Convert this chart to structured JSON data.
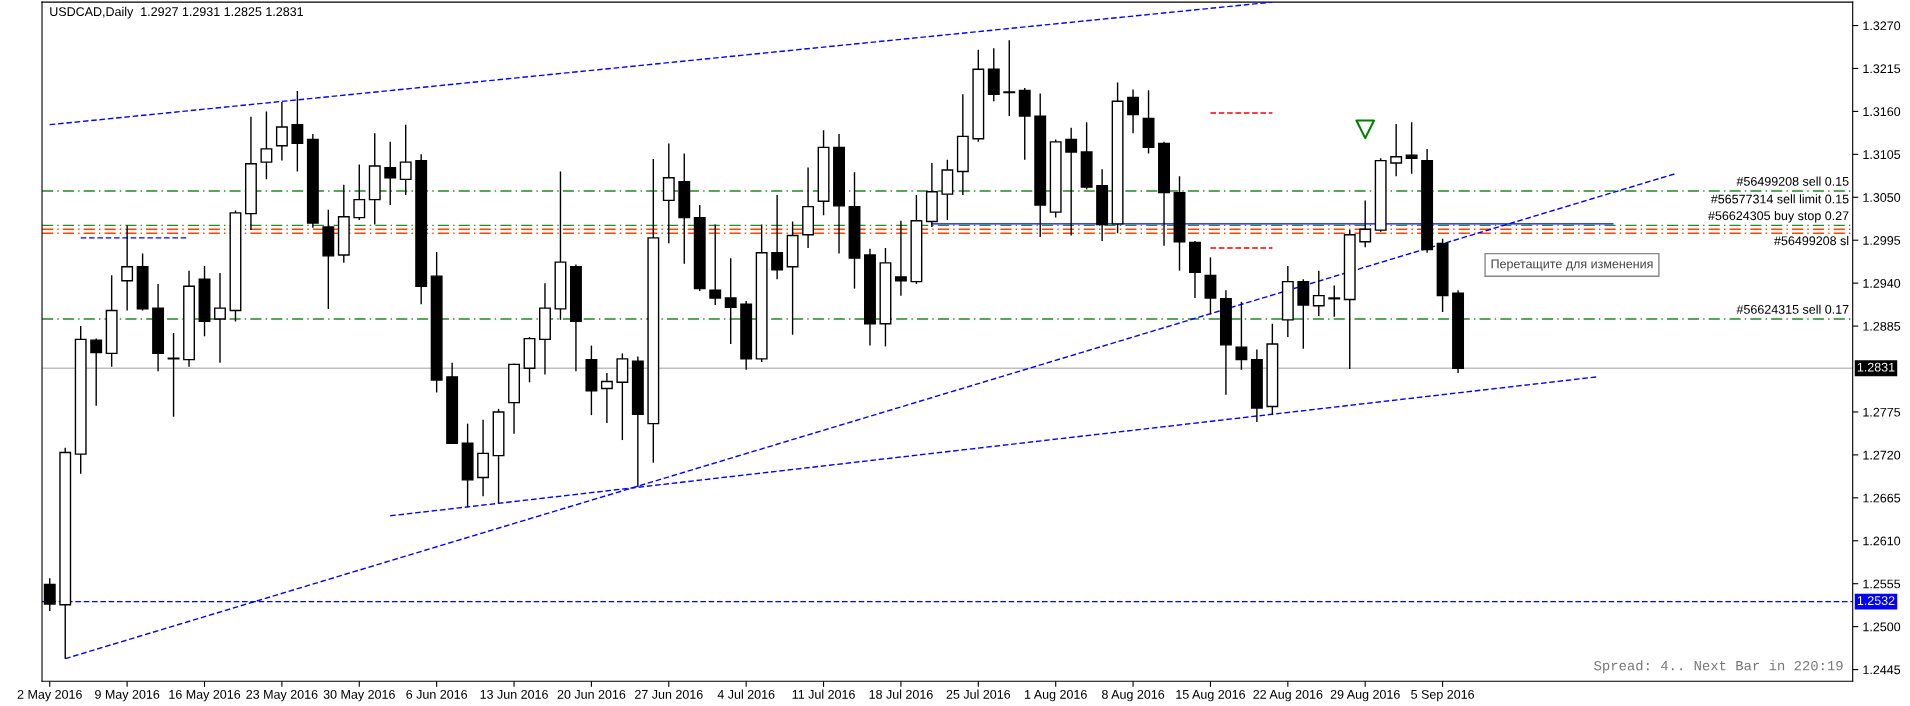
{
  "chart_data": {
    "type": "candlestick",
    "title": "USDCAD,Daily  1.2927 1.2931 1.2825 1.2831",
    "categories": [
      "2 May 2016",
      null,
      null,
      null,
      null,
      "9 May 2016",
      null,
      null,
      null,
      null,
      "16 May 2016",
      null,
      null,
      null,
      null,
      "23 May 2016",
      null,
      null,
      null,
      null,
      "30 May 2016",
      null,
      null,
      null,
      null,
      "6 Jun 2016",
      null,
      null,
      null,
      null,
      "13 Jun 2016",
      null,
      null,
      null,
      null,
      "20 Jun 2016",
      null,
      null,
      null,
      null,
      "27 Jun 2016",
      null,
      null,
      null,
      null,
      "4 Jul 2016",
      null,
      null,
      null,
      null,
      "11 Jul 2016",
      null,
      null,
      null,
      null,
      "18 Jul 2016",
      null,
      null,
      null,
      null,
      "25 Jul 2016",
      null,
      null,
      null,
      null,
      "1 Aug 2016",
      null,
      null,
      null,
      null,
      "8 Aug 2016",
      null,
      null,
      null,
      null,
      "15 Aug 2016",
      null,
      null,
      null,
      null,
      "22 Aug 2016",
      null,
      null,
      null,
      null,
      "29 Aug 2016",
      null,
      null,
      null,
      null,
      "5 Sep 2016",
      null,
      null,
      null,
      null,
      null,
      null,
      null,
      null,
      null,
      null,
      null,
      null,
      null,
      null,
      null,
      null,
      null,
      null,
      null,
      null,
      null,
      null,
      null,
      null,
      null,
      null
    ],
    "ohlc": [
      [
        1.2554,
        1.2562,
        1.252,
        1.2529
      ],
      [
        1.2528,
        1.2729,
        1.2459,
        1.2723
      ],
      [
        1.2721,
        1.2885,
        1.2696,
        1.2868
      ],
      [
        1.2867,
        1.2869,
        1.2783,
        1.2851
      ],
      [
        1.285,
        1.295,
        1.2833,
        1.2905
      ],
      [
        1.2943,
        1.3014,
        1.2905,
        1.2961
      ],
      [
        1.2961,
        1.2978,
        1.2905,
        1.2907
      ],
      [
        1.2908,
        1.2939,
        1.2827,
        1.285
      ],
      [
        1.2843,
        1.2876,
        1.2769,
        1.2844
      ],
      [
        1.2842,
        1.2956,
        1.2833,
        1.2936
      ],
      [
        1.2945,
        1.2962,
        1.2872,
        1.2891
      ],
      [
        1.2894,
        1.2953,
        1.2838,
        1.2908
      ],
      [
        1.2905,
        1.3033,
        1.2891,
        1.303
      ],
      [
        1.3029,
        1.3153,
        1.3008,
        1.3093
      ],
      [
        1.3095,
        1.316,
        1.3073,
        1.3112
      ],
      [
        1.3116,
        1.3172,
        1.3097,
        1.314
      ],
      [
        1.3143,
        1.3186,
        1.3083,
        1.3119
      ],
      [
        1.3124,
        1.3131,
        1.3011,
        1.3017
      ],
      [
        1.3012,
        1.3034,
        1.2907,
        1.2975
      ],
      [
        1.2976,
        1.3066,
        1.2966,
        1.3025
      ],
      [
        1.3024,
        1.3092,
        1.3021,
        1.3047
      ],
      [
        1.3047,
        1.3132,
        1.3015,
        1.309
      ],
      [
        1.3088,
        1.3121,
        1.304,
        1.3075
      ],
      [
        1.3073,
        1.3143,
        1.3053,
        1.3095
      ],
      [
        1.3097,
        1.3105,
        1.2913,
        1.2936
      ],
      [
        1.2949,
        1.298,
        1.28,
        1.2816
      ],
      [
        1.282,
        1.2838,
        1.2734,
        1.2735
      ],
      [
        1.2735,
        1.276,
        1.2653,
        1.2688
      ],
      [
        1.2691,
        1.2765,
        1.2667,
        1.2722
      ],
      [
        1.2719,
        1.2779,
        1.2658,
        1.2775
      ],
      [
        1.2787,
        1.2837,
        1.2747,
        1.2836
      ],
      [
        1.2831,
        1.2871,
        1.2813,
        1.2869
      ],
      [
        1.2868,
        1.294,
        1.2823,
        1.2908
      ],
      [
        1.2907,
        1.3083,
        1.2893,
        1.2967
      ],
      [
        1.2961,
        1.2964,
        1.2827,
        1.2891
      ],
      [
        1.2842,
        1.286,
        1.2771,
        1.2802
      ],
      [
        1.2805,
        1.2825,
        1.2761,
        1.2814
      ],
      [
        1.2813,
        1.285,
        1.2739,
        1.2843
      ],
      [
        1.284,
        1.2846,
        1.2679,
        1.2772
      ],
      [
        1.276,
        1.3099,
        1.271,
        1.2998
      ],
      [
        1.3046,
        1.3119,
        1.2991,
        1.3075
      ],
      [
        1.307,
        1.3106,
        1.2965,
        1.3024
      ],
      [
        1.3024,
        1.304,
        1.293,
        1.2933
      ],
      [
        1.2931,
        1.3015,
        1.2912,
        1.2921
      ],
      [
        1.2921,
        1.2972,
        1.2862,
        1.2909
      ],
      [
        1.2913,
        1.2917,
        1.2829,
        1.2843
      ],
      [
        1.2843,
        1.3015,
        1.2839,
        1.2979
      ],
      [
        1.2979,
        1.3053,
        1.2945,
        1.2957
      ],
      [
        1.2961,
        1.3019,
        1.2874,
        1.3001
      ],
      [
        1.3002,
        1.3088,
        1.2985,
        1.3038
      ],
      [
        1.3045,
        1.3136,
        1.3027,
        1.3114
      ],
      [
        1.3114,
        1.3131,
        1.2978,
        1.3039
      ],
      [
        1.3038,
        1.3082,
        1.2933,
        1.2972
      ],
      [
        1.2976,
        1.2984,
        1.286,
        1.2888
      ],
      [
        1.2888,
        1.2985,
        1.2859,
        1.2966
      ],
      [
        1.2948,
        1.302,
        1.2924,
        1.2943
      ],
      [
        1.2942,
        1.3053,
        1.2939,
        1.302
      ],
      [
        1.3019,
        1.3094,
        1.3012,
        1.3057
      ],
      [
        1.3054,
        1.3098,
        1.3021,
        1.3085
      ],
      [
        1.3083,
        1.3182,
        1.3053,
        1.3128
      ],
      [
        1.3125,
        1.3239,
        1.3121,
        1.3214
      ],
      [
        1.3214,
        1.3241,
        1.3173,
        1.3182
      ],
      [
        1.3185,
        1.3251,
        1.3154,
        1.3184
      ],
      [
        1.3187,
        1.319,
        1.3098,
        1.3154
      ],
      [
        1.3154,
        1.3183,
        1.2999,
        1.304
      ],
      [
        1.3031,
        1.3124,
        1.3024,
        1.3121
      ],
      [
        1.3124,
        1.3139,
        1.3001,
        1.3108
      ],
      [
        1.3108,
        1.3146,
        1.306,
        1.3063
      ],
      [
        1.3065,
        1.3086,
        1.2994,
        1.3015
      ],
      [
        1.3016,
        1.3197,
        1.3004,
        1.3173
      ],
      [
        1.3178,
        1.3188,
        1.3132,
        1.3156
      ],
      [
        1.3151,
        1.3187,
        1.3106,
        1.3114
      ],
      [
        1.3119,
        1.3121,
        1.2988,
        1.3056
      ],
      [
        1.3056,
        1.3077,
        1.2956,
        1.2993
      ],
      [
        1.2992,
        1.2994,
        1.2921,
        1.2954
      ],
      [
        1.295,
        1.2973,
        1.29,
        1.2921
      ],
      [
        1.292,
        1.2931,
        1.2797,
        1.2861
      ],
      [
        1.2858,
        1.2916,
        1.2829,
        1.2842
      ],
      [
        1.2842,
        1.2855,
        1.2762,
        1.278
      ],
      [
        1.2782,
        1.2888,
        1.2771,
        1.2862
      ],
      [
        1.2893,
        1.2962,
        1.2871,
        1.2942
      ],
      [
        1.2942,
        1.2945,
        1.2856,
        1.2912
      ],
      [
        1.2911,
        1.2956,
        1.2898,
        1.2924
      ],
      [
        1.2921,
        1.2937,
        1.2897,
        1.292
      ],
      [
        1.2919,
        1.3008,
        1.283,
        1.3002
      ],
      [
        1.2993,
        1.3046,
        1.2986,
        1.3009
      ],
      [
        1.3008,
        1.31,
        1.3006,
        1.3097
      ],
      [
        1.3094,
        1.3144,
        1.3077,
        1.3102
      ],
      [
        1.3104,
        1.3146,
        1.308,
        1.31
      ],
      [
        1.3097,
        1.3112,
        1.2979,
        1.2983
      ],
      [
        1.2991,
        1.2997,
        1.2903,
        1.2924
      ],
      [
        1.2927,
        1.2931,
        1.2825,
        1.2831
      ],
      null,
      null,
      null,
      null,
      null,
      null,
      null,
      null,
      null,
      null,
      null,
      null,
      null,
      null,
      null,
      null,
      null,
      null,
      null,
      null,
      null,
      null,
      null,
      null,
      null
    ],
    "series": [
      {
        "type": "line",
        "color": "#0000ff",
        "line_style": "dashed",
        "values": [
          1.3143,
          null,
          null,
          null,
          null,
          null,
          null,
          null,
          null,
          null,
          null,
          null,
          null,
          null,
          null,
          null,
          null,
          null,
          null,
          null,
          null,
          null,
          null,
          null,
          null,
          null,
          null,
          null,
          null,
          null,
          null,
          null,
          null,
          null,
          null,
          null,
          null,
          null,
          null,
          null,
          null,
          null,
          null,
          null,
          null,
          null,
          null,
          null,
          null,
          null,
          null,
          null,
          null,
          null,
          null,
          null,
          null,
          null,
          null,
          null,
          null,
          null,
          null,
          null,
          null,
          null,
          null,
          null,
          null,
          null,
          null,
          null,
          null,
          null,
          null,
          null,
          null,
          null,
          null,
          1.33,
          null,
          null,
          null,
          null,
          null,
          null,
          null,
          null,
          null,
          null,
          null,
          null,
          null,
          null,
          null,
          null,
          null,
          null,
          null,
          null,
          null,
          null,
          null,
          null,
          null,
          null,
          null,
          null,
          null,
          null,
          null,
          null,
          null,
          null,
          null,
          null,
          null
        ]
      },
      {
        "type": "line",
        "color": "#0000ff",
        "line_style": "dashed",
        "values": [
          null,
          1.2459,
          null,
          null,
          null,
          null,
          null,
          null,
          null,
          null,
          null,
          null,
          null,
          null,
          null,
          null,
          null,
          null,
          null,
          null,
          null,
          null,
          null,
          null,
          null,
          null,
          null,
          null,
          null,
          null,
          null,
          null,
          null,
          null,
          null,
          null,
          null,
          null,
          null,
          null,
          null,
          null,
          null,
          null,
          null,
          null,
          null,
          null,
          null,
          null,
          null,
          null,
          null,
          null,
          null,
          null,
          null,
          null,
          null,
          null,
          null,
          null,
          null,
          null,
          null,
          null,
          null,
          null,
          null,
          null,
          null,
          null,
          null,
          null,
          null,
          null,
          null,
          null,
          null,
          null,
          null,
          null,
          null,
          null,
          null,
          null,
          null,
          null,
          null,
          null,
          null,
          null,
          null,
          null,
          null,
          null,
          null,
          null,
          null,
          null,
          null,
          null,
          null,
          null,
          null,
          1.308,
          null,
          null,
          null,
          null,
          null,
          null,
          null,
          null,
          null,
          null,
          null
        ]
      },
      {
        "type": "line",
        "color": "#0000ff",
        "line_style": "dashed",
        "values": [
          null,
          null,
          null,
          null,
          null,
          null,
          null,
          null,
          null,
          null,
          null,
          null,
          null,
          null,
          null,
          null,
          null,
          null,
          null,
          null,
          null,
          null,
          1.2642,
          null,
          null,
          null,
          null,
          null,
          null,
          null,
          null,
          null,
          null,
          null,
          null,
          null,
          null,
          null,
          null,
          null,
          null,
          null,
          null,
          null,
          null,
          null,
          null,
          null,
          null,
          null,
          null,
          null,
          null,
          null,
          null,
          null,
          null,
          null,
          null,
          null,
          null,
          null,
          null,
          null,
          null,
          null,
          null,
          null,
          null,
          null,
          null,
          null,
          null,
          null,
          null,
          null,
          null,
          null,
          null,
          null,
          null,
          null,
          null,
          null,
          null,
          null,
          null,
          null,
          null,
          null,
          null,
          null,
          null,
          null,
          null,
          null,
          null,
          null,
          null,
          null,
          1.282,
          null,
          null,
          null,
          null,
          null,
          null,
          null,
          null,
          null,
          null,
          null,
          null,
          null,
          null,
          null,
          null
        ]
      },
      {
        "type": "line",
        "color": "#0000ff",
        "line_style": "dashed",
        "values": [
          null,
          null,
          1.2998,
          null,
          null,
          null,
          null,
          null,
          null,
          1.2998,
          null,
          null,
          null,
          null,
          null,
          null,
          null,
          null,
          null,
          null,
          null,
          null,
          null,
          null,
          null,
          null,
          null,
          null,
          null,
          null,
          null,
          null,
          null,
          null,
          null,
          null,
          null,
          null,
          null,
          null,
          null,
          null,
          null,
          null,
          null,
          null,
          null,
          null,
          null,
          null,
          null,
          null,
          null,
          null,
          null,
          null,
          null,
          null,
          null,
          null,
          null,
          null,
          null,
          null,
          null,
          null,
          null,
          null,
          null,
          null,
          null,
          null,
          null,
          null,
          null,
          null,
          null,
          null,
          null,
          null,
          null,
          null,
          null,
          null,
          null,
          null,
          null,
          null,
          null,
          null,
          null,
          null,
          null,
          null,
          null,
          null,
          null,
          null,
          null,
          null,
          null,
          null,
          null,
          null,
          null,
          null,
          null,
          null,
          null,
          null,
          null,
          null,
          null,
          null,
          null,
          null,
          null
        ]
      },
      {
        "type": "line",
        "color": "#0000ff",
        "line_style": "solid",
        "values": [
          null,
          null,
          null,
          null,
          null,
          null,
          null,
          null,
          null,
          null,
          null,
          null,
          null,
          null,
          null,
          null,
          null,
          null,
          null,
          null,
          null,
          null,
          null,
          null,
          null,
          null,
          null,
          null,
          null,
          null,
          null,
          null,
          null,
          null,
          null,
          null,
          null,
          null,
          null,
          null,
          null,
          null,
          null,
          null,
          null,
          null,
          null,
          null,
          null,
          null,
          null,
          null,
          null,
          null,
          null,
          null,
          null,
          1.3016,
          null,
          null,
          null,
          null,
          null,
          null,
          null,
          null,
          null,
          null,
          null,
          null,
          null,
          null,
          null,
          null,
          null,
          null,
          null,
          null,
          null,
          null,
          null,
          null,
          null,
          null,
          null,
          null,
          null,
          null,
          null,
          null,
          null,
          null,
          null,
          null,
          null,
          null,
          null,
          null,
          null,
          null,
          null,
          1.3016,
          null,
          null,
          null,
          null,
          null,
          null,
          null,
          null,
          null,
          null,
          null,
          null,
          null,
          null,
          null
        ]
      },
      {
        "type": "line",
        "color": "#ff0000",
        "line_style": "dashed",
        "values": [
          null,
          null,
          null,
          null,
          null,
          null,
          null,
          null,
          null,
          null,
          null,
          null,
          null,
          null,
          null,
          null,
          null,
          null,
          null,
          null,
          null,
          null,
          null,
          null,
          null,
          null,
          null,
          null,
          null,
          null,
          null,
          null,
          null,
          null,
          null,
          null,
          null,
          null,
          null,
          null,
          null,
          null,
          null,
          null,
          null,
          null,
          null,
          null,
          null,
          null,
          null,
          null,
          null,
          null,
          null,
          null,
          null,
          null,
          null,
          null,
          null,
          null,
          null,
          null,
          null,
          null,
          null,
          null,
          null,
          null,
          null,
          null,
          null,
          null,
          null,
          1.3158,
          null,
          null,
          null,
          1.3158,
          null,
          null,
          null,
          null,
          null,
          null,
          null,
          null,
          null,
          null,
          null,
          null,
          null,
          null,
          null,
          null,
          null,
          null,
          null,
          null,
          null,
          null,
          null,
          null,
          null,
          null,
          null,
          null,
          null,
          null,
          null,
          null,
          null,
          null,
          null,
          null,
          null
        ]
      },
      {
        "type": "line",
        "color": "#ff0000",
        "line_style": "dashed",
        "values": [
          null,
          null,
          null,
          null,
          null,
          null,
          null,
          null,
          null,
          null,
          null,
          null,
          null,
          null,
          null,
          null,
          null,
          null,
          null,
          null,
          null,
          null,
          null,
          null,
          null,
          null,
          null,
          null,
          null,
          null,
          null,
          null,
          null,
          null,
          null,
          null,
          null,
          null,
          null,
          null,
          null,
          null,
          null,
          null,
          null,
          null,
          null,
          null,
          null,
          null,
          null,
          null,
          null,
          null,
          null,
          null,
          null,
          null,
          null,
          null,
          null,
          null,
          null,
          null,
          null,
          null,
          null,
          null,
          null,
          null,
          null,
          null,
          null,
          null,
          null,
          1.2985,
          null,
          null,
          null,
          1.2985,
          null,
          null,
          null,
          null,
          null,
          null,
          null,
          null,
          null,
          null,
          null,
          null,
          null,
          null,
          null,
          null,
          null,
          null,
          null,
          null,
          null,
          null,
          null,
          null,
          null,
          null,
          null,
          null,
          null,
          null,
          null,
          null,
          null,
          null,
          null,
          null,
          null
        ]
      },
      {
        "type": "scatter",
        "color": "#008000",
        "marker": "triangle",
        "values": [
          null,
          null,
          null,
          null,
          null,
          null,
          null,
          null,
          null,
          null,
          null,
          null,
          null,
          null,
          null,
          null,
          null,
          null,
          null,
          null,
          null,
          null,
          null,
          null,
          null,
          null,
          null,
          null,
          null,
          null,
          null,
          null,
          null,
          null,
          null,
          null,
          null,
          null,
          null,
          null,
          null,
          null,
          null,
          null,
          null,
          null,
          null,
          null,
          null,
          null,
          null,
          null,
          null,
          null,
          null,
          null,
          null,
          null,
          null,
          null,
          null,
          null,
          null,
          null,
          null,
          null,
          null,
          null,
          null,
          null,
          null,
          null,
          null,
          null,
          null,
          null,
          null,
          null,
          null,
          null,
          null,
          null,
          null,
          null,
          null,
          1.3137,
          null,
          null,
          null,
          null,
          null,
          null,
          null,
          null,
          null,
          null,
          null,
          null,
          null,
          null,
          null,
          null,
          null,
          null,
          null,
          null,
          null,
          null,
          null,
          null,
          null,
          null,
          null,
          null,
          null,
          null,
          null
        ]
      }
    ],
    "ref_lines": [
      {
        "axis": "y",
        "value": 1.3058,
        "label": "#56499208 sell 0.15",
        "color": "#228b22",
        "line_style": "dashdot"
      },
      {
        "axis": "y",
        "value": 1.3014,
        "label": "#56577314 sell limit 0.15",
        "color": "#228b22",
        "line_style": "dashdot"
      },
      {
        "axis": "y",
        "value": 1.3009,
        "label": "#56624305 buy stop 0.27",
        "color": "#ff4500",
        "line_style": "dashdot"
      },
      {
        "axis": "y",
        "value": 1.3004,
        "label": "#56499208 sl",
        "color": "#ff4500",
        "line_style": "dashdot"
      },
      {
        "axis": "y",
        "value": 1.2894,
        "label": "#56624315 sell 0.17",
        "color": "#228b22",
        "line_style": "dashdot"
      },
      {
        "axis": "y",
        "value": 1.2831,
        "label": "1.2831",
        "color": "#c0c0c0",
        "line_style": "solid"
      },
      {
        "axis": "y",
        "value": 1.2532,
        "label": "1.2532",
        "color": "#0000ff",
        "line_style": "dashed"
      }
    ],
    "annotations": [
      "Перетащите для изменения",
      "Spread: 4.. Next Bar in 220:19"
    ],
    "ylim": [
      1.243,
      1.33
    ],
    "yticks": [
      {
        "value": 1.2445,
        "label": "1.2445"
      },
      {
        "value": 1.25,
        "label": "1.2500"
      },
      {
        "value": 1.2555,
        "label": "1.2555"
      },
      {
        "value": 1.261,
        "label": "1.2610"
      },
      {
        "value": 1.2665,
        "label": "1.2665"
      },
      {
        "value": 1.272,
        "label": "1.2720"
      },
      {
        "value": 1.2775,
        "label": "1.2775"
      },
      {
        "value": 1.2885,
        "label": "1.2885"
      },
      {
        "value": 1.294,
        "label": "1.2940"
      },
      {
        "value": 1.2995,
        "label": "1.2995"
      },
      {
        "value": 1.305,
        "label": "1.3050"
      },
      {
        "value": 1.3105,
        "label": "1.3105"
      },
      {
        "value": 1.316,
        "label": "1.3160"
      },
      {
        "value": 1.3215,
        "label": "1.3215"
      },
      {
        "value": 1.327,
        "label": "1.3270"
      }
    ]
  }
}
